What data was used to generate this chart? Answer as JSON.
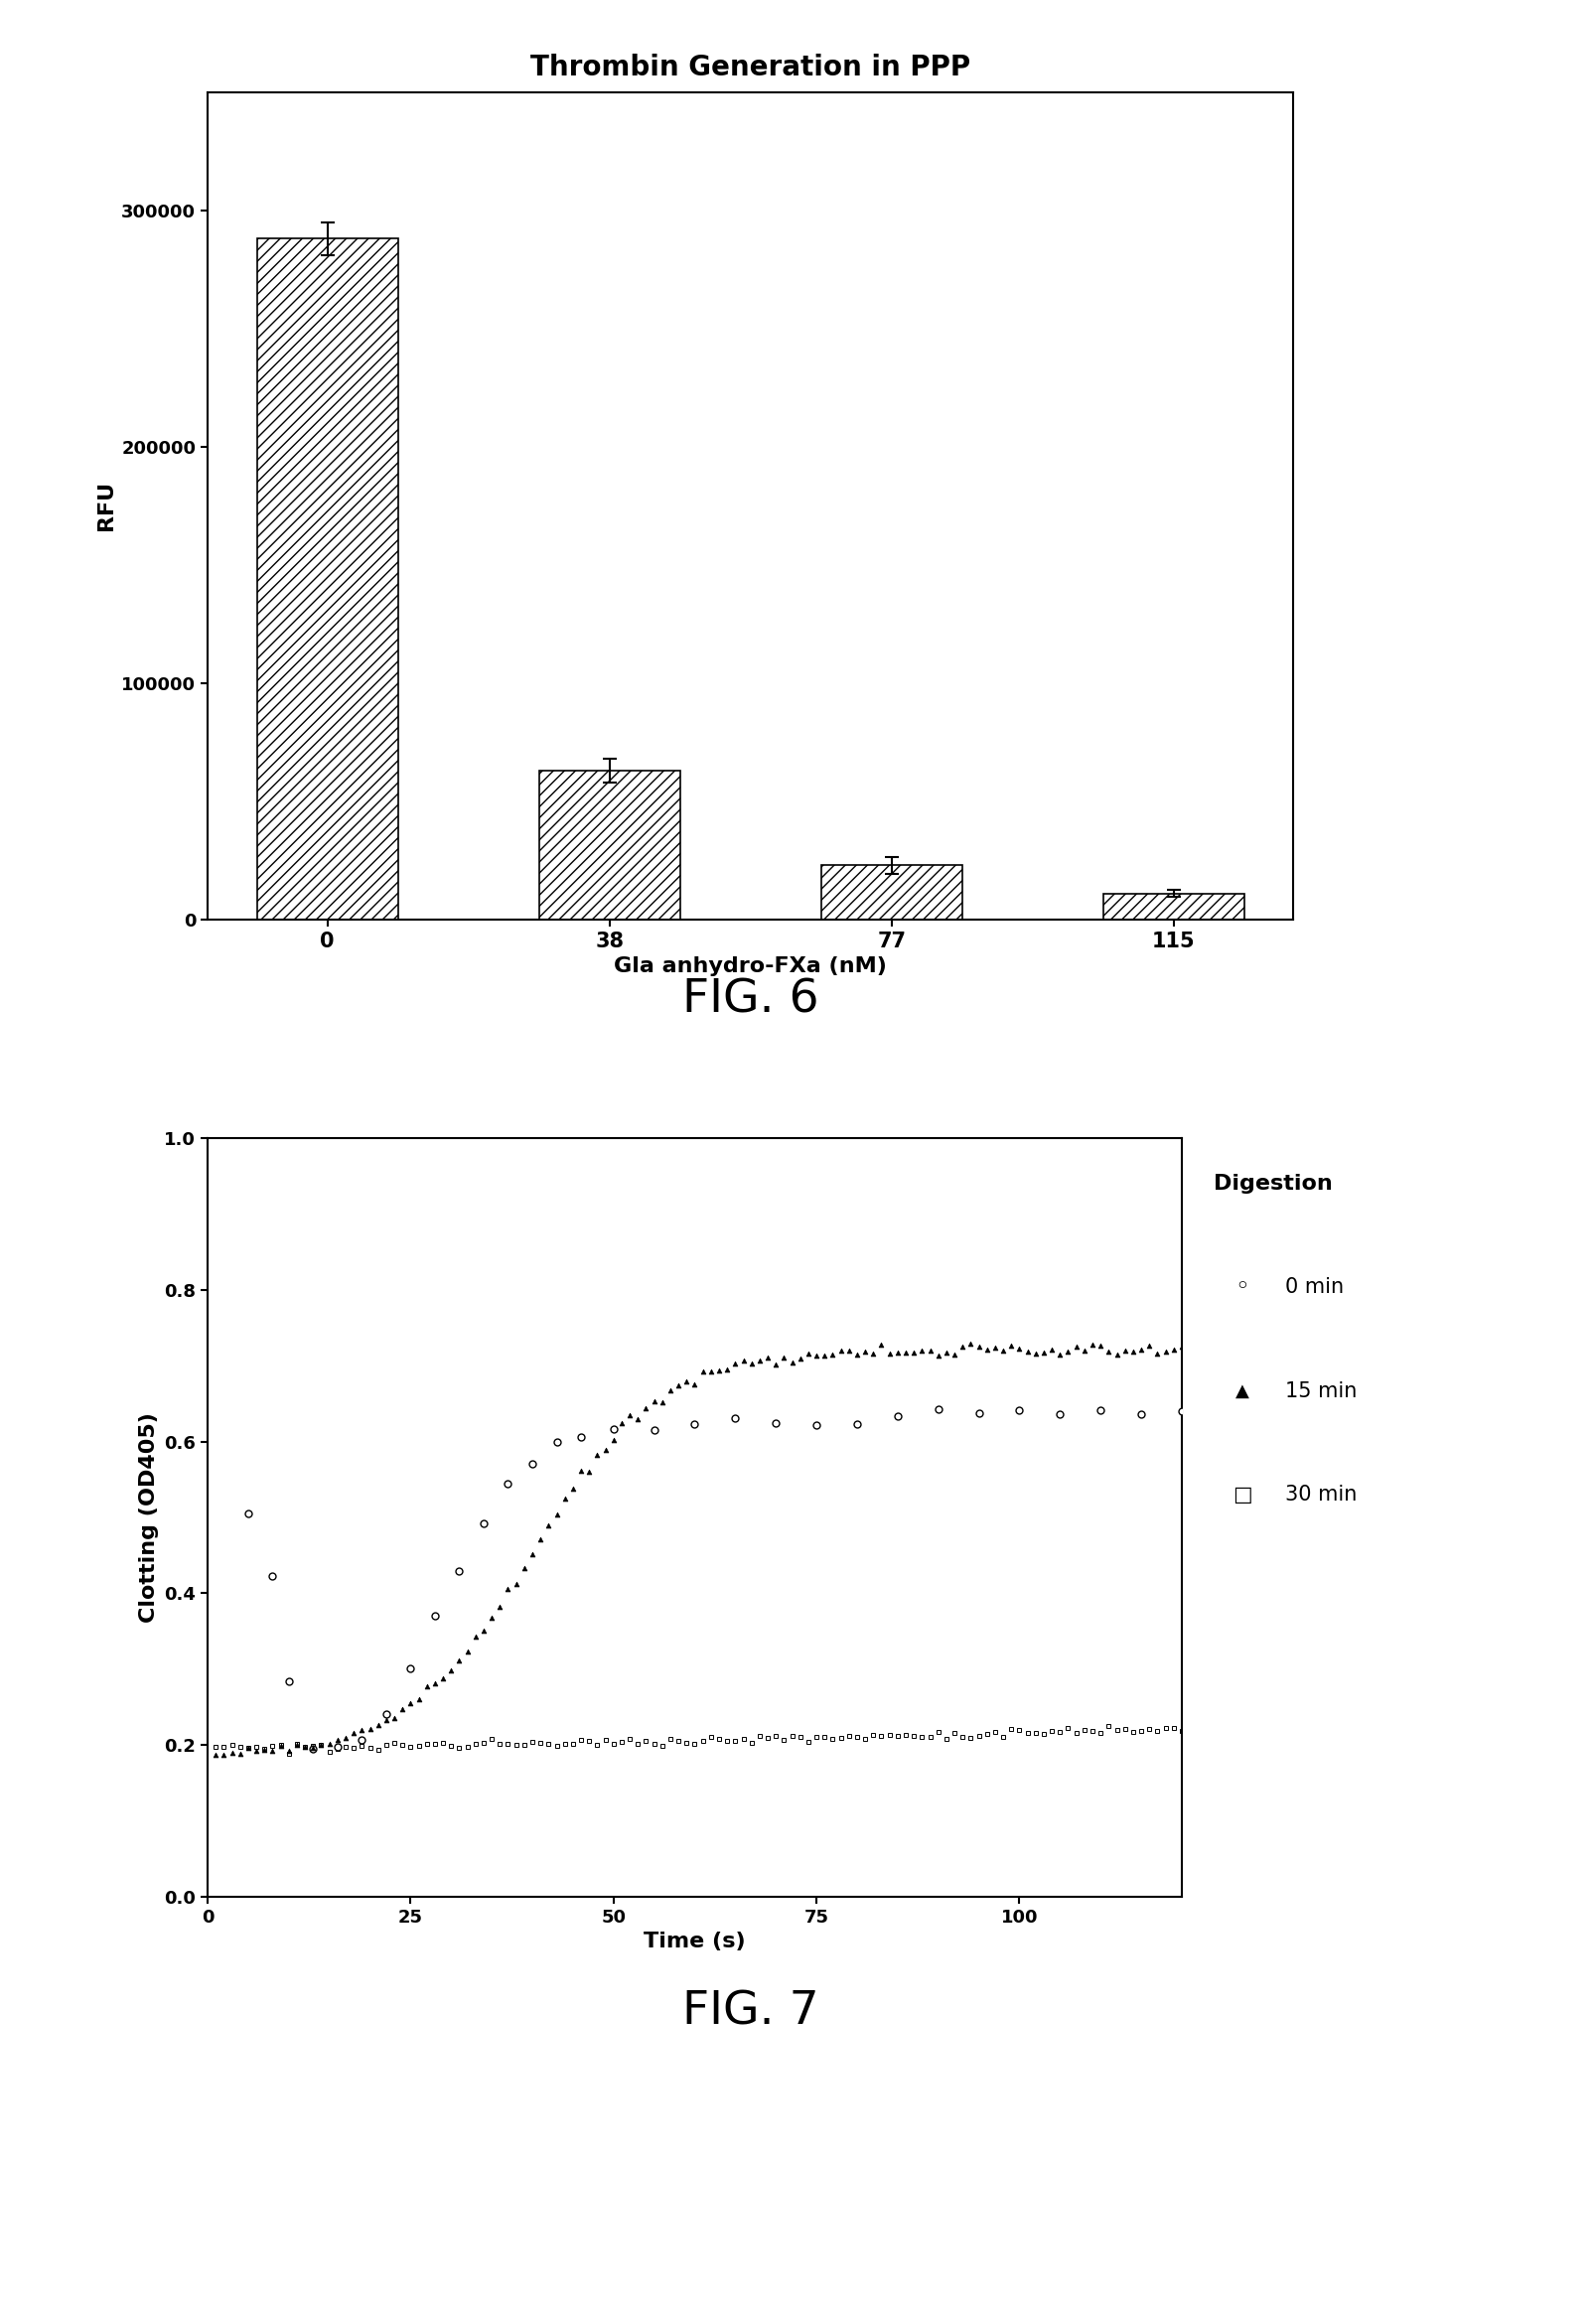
{
  "fig6": {
    "title": "Thrombin Generation in PPP",
    "categories": [
      "0",
      "38",
      "77",
      "115"
    ],
    "values": [
      288000,
      63000,
      23000,
      11000
    ],
    "errors": [
      7000,
      5000,
      3500,
      1500
    ],
    "xlabel": "Gla anhydro-FXa (nM)",
    "ylabel": "RFU",
    "ylim": [
      0,
      350000
    ],
    "yticks": [
      0,
      100000,
      200000,
      300000
    ],
    "bar_color": "#ffffff",
    "hatch": "///",
    "bar_edgecolor": "#000000"
  },
  "fig7": {
    "xlabel": "Time (s)",
    "ylabel": "Clotting (OD405)",
    "ylim": [
      0.0,
      1.0
    ],
    "xlim": [
      0,
      120
    ],
    "xticks": [
      0,
      25,
      50,
      75,
      100
    ],
    "yticks": [
      0.0,
      0.2,
      0.4,
      0.6,
      0.8,
      1.0
    ],
    "legend_title": "Digestion",
    "legend_entries": [
      "0 min",
      "15 min",
      "30 min"
    ],
    "legend_markers": [
      "o",
      "^",
      "s"
    ]
  },
  "fig6_label": "FIG. 6",
  "fig7_label": "FIG. 7",
  "background_color": "#ffffff",
  "text_color": "#000000"
}
